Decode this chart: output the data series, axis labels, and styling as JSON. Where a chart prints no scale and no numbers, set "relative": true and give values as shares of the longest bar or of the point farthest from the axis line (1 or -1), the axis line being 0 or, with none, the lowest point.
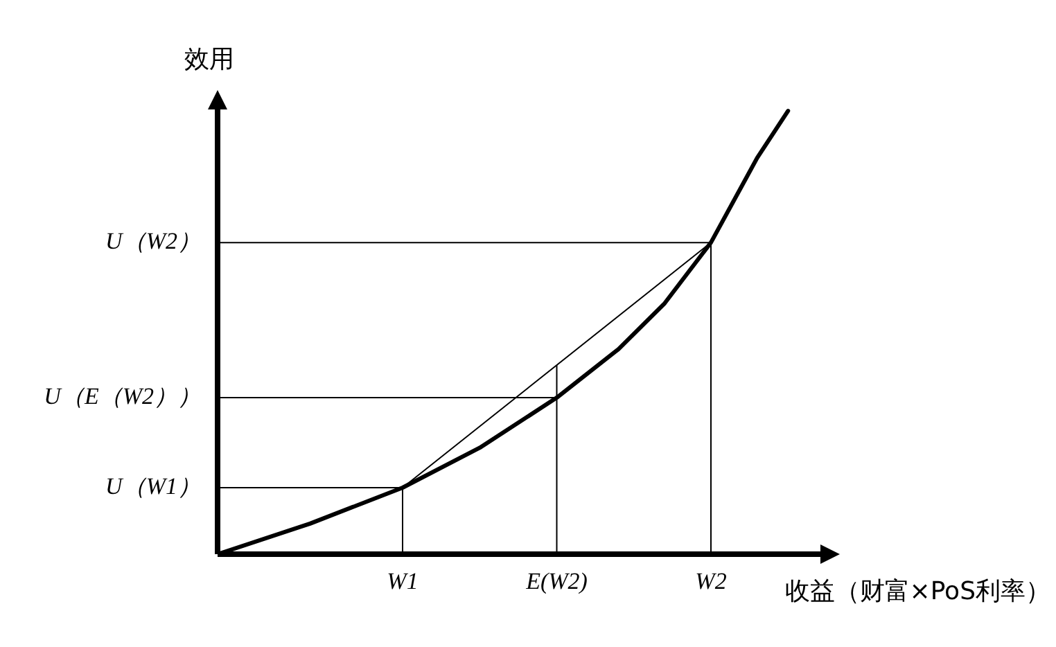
{
  "chart_data": {
    "type": "line",
    "relative": true,
    "ylabel": "效用",
    "xlabel": "收益（财富×PoS利率）",
    "legend": false,
    "marker": "none",
    "line_style": "solid",
    "categories": [
      null,
      null,
      null,
      null,
      null,
      null,
      null,
      null,
      null,
      null,
      null,
      null,
      "W1",
      null,
      null,
      null,
      null,
      null,
      null,
      null,
      null,
      null,
      "E(W2)",
      null,
      null,
      null,
      null,
      null,
      null,
      null,
      null,
      null,
      "W2",
      null,
      null,
      null,
      null,
      null,
      null,
      null,
      null
    ],
    "series": [
      {
        "color": "#000000",
        "values": [
          0,
          null,
          null,
          null,
          null,
          null,
          0.069,
          null,
          null,
          null,
          null,
          null,
          0.15,
          null,
          null,
          null,
          null,
          0.24,
          null,
          null,
          null,
          null,
          0.353,
          null,
          null,
          null,
          0.4625,
          null,
          null,
          0.566,
          null,
          null,
          0.703,
          null,
          null,
          0.894,
          null,
          1,
          null,
          null,
          null
        ]
      },
      {
        "color": "#000000",
        "values": [
          null,
          null,
          null,
          null,
          null,
          null,
          null,
          null,
          null,
          null,
          null,
          null,
          0.15,
          null,
          null,
          null,
          null,
          null,
          null,
          null,
          null,
          null,
          null,
          null,
          null,
          null,
          null,
          null,
          null,
          null,
          null,
          null,
          0.703,
          null,
          null,
          null,
          null,
          null,
          null,
          null,
          null
        ]
      }
    ],
    "ref_lines": [
      {
        "axis": "x",
        "value": "W1"
      },
      {
        "axis": "x",
        "value": "E(W2)"
      },
      {
        "axis": "x",
        "value": "W2"
      },
      {
        "axis": "y",
        "value": 0.703,
        "label": "U（W2）"
      },
      {
        "axis": "y",
        "value": 0.353,
        "label": "U（E（W2））"
      },
      {
        "axis": "y",
        "value": 0.15,
        "label": "U（W1）"
      }
    ]
  }
}
